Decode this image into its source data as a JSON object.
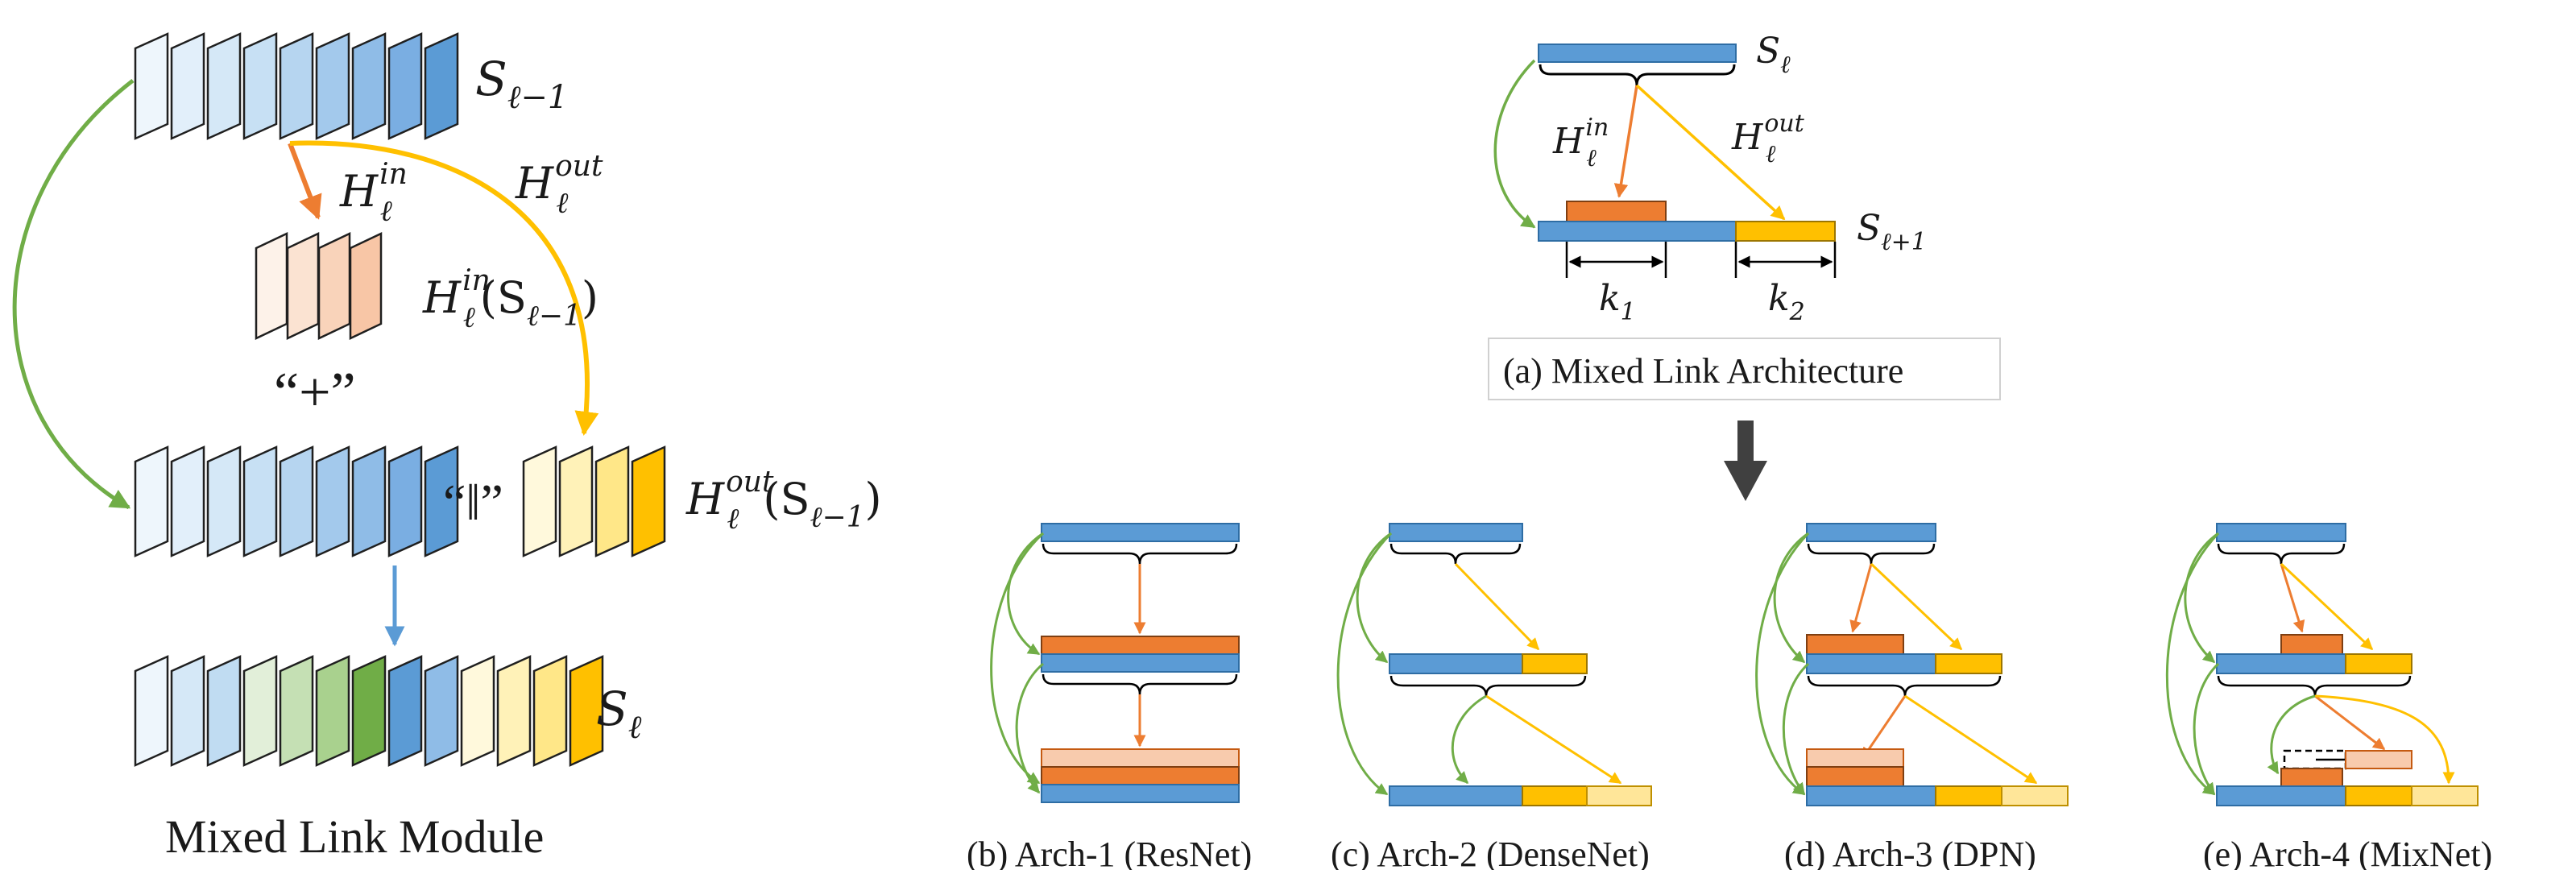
{
  "colors": {
    "blue": "#5b9bd5",
    "blue_stroke": "#2e6da4",
    "orange": "#ed7d31",
    "orange_light": "#f8cbad",
    "yellow": "#ffc000",
    "yellow_light": "#ffe699",
    "green": "#70ad47",
    "arrow_blue": "#5b9bd5",
    "gray": "#404040"
  },
  "module": {
    "caption": "Mixed Link Module",
    "s_prev": "S_{ℓ−1}",
    "h_in": "H_ℓ^{in}",
    "h_out": "H_ℓ^{out}",
    "h_in_apply": "H_ℓ^{in}(S_{ℓ−1})",
    "h_out_apply": "H_ℓ^{out}(S_{ℓ−1})",
    "plus": "“+”",
    "concat": "“‖”",
    "s_cur": "S_ℓ"
  },
  "arch_a": {
    "caption": "(a) Mixed Link Architecture",
    "s_top": "S_ℓ",
    "s_bottom": "S_{ℓ+1}",
    "h_in": "H_ℓ^{in}",
    "h_out": "H_ℓ^{out}",
    "k1": "k_1",
    "k2": "k_2"
  },
  "variants": [
    {
      "caption": "(b) Arch-1 (ResNet)"
    },
    {
      "caption": "(c) Arch-2 (DenseNet)"
    },
    {
      "caption": "(d) Arch-3 (DPN)"
    },
    {
      "caption": "(e) Arch-4 (MixNet)"
    }
  ]
}
